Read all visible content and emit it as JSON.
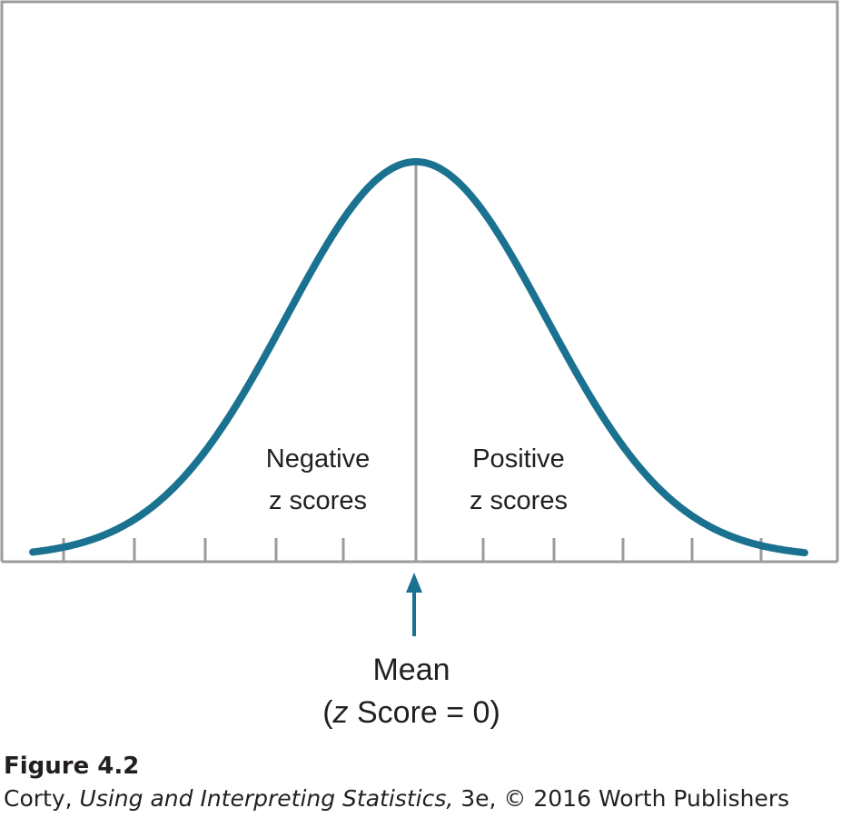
{
  "colors": {
    "curve": "#1a7290",
    "frame": "#9b9b9b",
    "text": "#231f20"
  },
  "diagram": {
    "type": "normal-distribution",
    "tick_count_left": 5,
    "tick_count_right": 5,
    "labels": {
      "negative_line1": "Negative",
      "negative_line2": "z scores",
      "positive_line1": "Positive",
      "positive_line2": "z scores",
      "mean": "Mean",
      "mean_sub_open": "(",
      "mean_sub_z": "z",
      "mean_sub_rest": " Score = 0)"
    }
  },
  "caption": {
    "figure": "Figure 4.2",
    "author": "Corty, ",
    "book_title": "Using and Interpreting Statistics,",
    "rest": " 3e, © 2016 Worth Publishers"
  }
}
